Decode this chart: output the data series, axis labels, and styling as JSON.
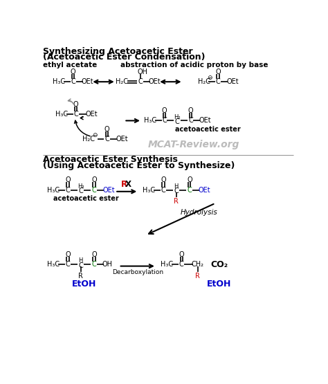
{
  "title1": "Synthesizing Acetoacetic Ester",
  "title1b": "(Acetoacetic Ester Condensation)",
  "title2": "Acetoacetic Ester Synthesis",
  "title2b": "(Using Acetoacetic Ester to Synthesize)",
  "label_ethyl": "ethyl acetate",
  "label_abstraction": "abstraction of acidic proton by base",
  "label_acetoacetic1": "acetoacetic ester",
  "label_acetoacetic2": "acetoacetic ester",
  "label_RX": "RX",
  "label_hydrolysis": "Hydrolysis",
  "label_decarboxylation": "Decarboxylation",
  "label_EtOH1": "EtOH",
  "label_EtOH2": "EtOH",
  "label_CO2": "CO₂",
  "watermark": "MCAT-Review.org",
  "bg_color": "#ffffff",
  "black": "#000000",
  "red": "#cc0000",
  "blue": "#0000cc",
  "green": "#007700",
  "gray": "#888888"
}
